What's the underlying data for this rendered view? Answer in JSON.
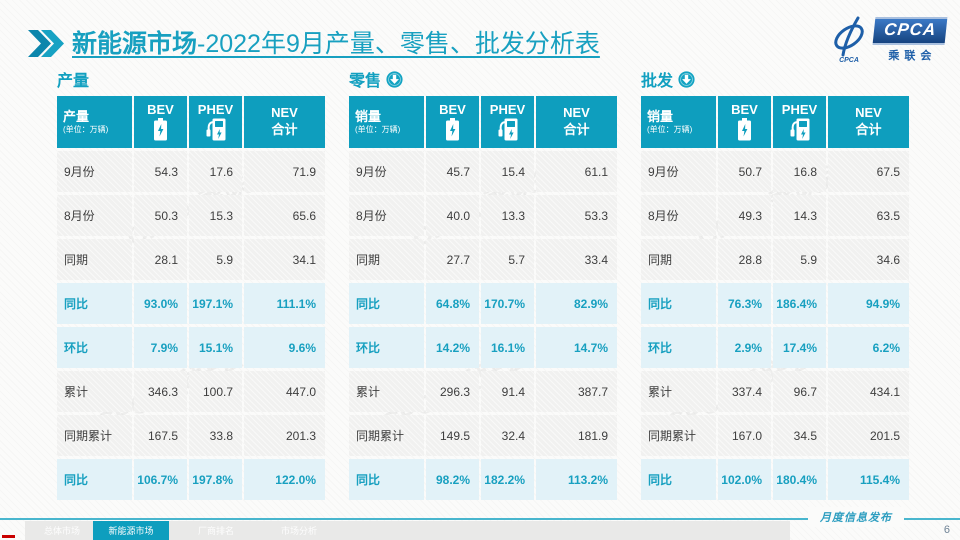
{
  "page": {
    "title_bold": "新能源市场",
    "title_rest": "-2022年9月产量、零售、批发分析表",
    "publication_label": "月度信息发布",
    "page_number": "6",
    "watermark": "CPCA 乘联会"
  },
  "logo": {
    "acronym": "CPCA",
    "name": "乘联会",
    "mark": "CPCA"
  },
  "icons": {
    "title": "double-chevron-icon",
    "bev": "battery-icon",
    "phev": "charging-pump-icon",
    "section_arrow": "down-arrow-circle-icon"
  },
  "colors": {
    "accent_teal": "#0E9EBE",
    "title_teal": "#18A0C0",
    "highlight_row_bg": "#E2F2F8",
    "normal_row_bg": "#F1F1F0",
    "logo_blue": "#1E5FA8",
    "footer_line_teal": "#49B6CE",
    "highlight_text": "#18A0C0"
  },
  "tables": [
    {
      "section": "产量",
      "has_arrow": false,
      "header": {
        "label": "产量",
        "unit": "(单位：万辆)",
        "col_bev": "BEV",
        "col_phev": "PHEV",
        "col_nev_line1": "NEV",
        "col_nev_line2": "合计"
      },
      "rows": [
        {
          "label": "9月份",
          "values": [
            "54.3",
            "17.6",
            "71.9"
          ],
          "highlight": false
        },
        {
          "label": "8月份",
          "values": [
            "50.3",
            "15.3",
            "65.6"
          ],
          "highlight": false
        },
        {
          "label": "同期",
          "values": [
            "28.1",
            "5.9",
            "34.1"
          ],
          "highlight": false
        },
        {
          "label": "同比",
          "values": [
            "93.0%",
            "197.1%",
            "111.1%"
          ],
          "highlight": true
        },
        {
          "label": "环比",
          "values": [
            "7.9%",
            "15.1%",
            "9.6%"
          ],
          "highlight": true
        },
        {
          "label": "累计",
          "values": [
            "346.3",
            "100.7",
            "447.0"
          ],
          "highlight": false
        },
        {
          "label": "同期累计",
          "values": [
            "167.5",
            "33.8",
            "201.3"
          ],
          "highlight": false
        },
        {
          "label": "同比",
          "values": [
            "106.7%",
            "197.8%",
            "122.0%"
          ],
          "highlight": true
        }
      ]
    },
    {
      "section": "零售",
      "has_arrow": true,
      "header": {
        "label": "销量",
        "unit": "(单位：万辆)",
        "col_bev": "BEV",
        "col_phev": "PHEV",
        "col_nev_line1": "NEV",
        "col_nev_line2": "合计"
      },
      "rows": [
        {
          "label": "9月份",
          "values": [
            "45.7",
            "15.4",
            "61.1"
          ],
          "highlight": false
        },
        {
          "label": "8月份",
          "values": [
            "40.0",
            "13.3",
            "53.3"
          ],
          "highlight": false
        },
        {
          "label": "同期",
          "values": [
            "27.7",
            "5.7",
            "33.4"
          ],
          "highlight": false
        },
        {
          "label": "同比",
          "values": [
            "64.8%",
            "170.7%",
            "82.9%"
          ],
          "highlight": true
        },
        {
          "label": "环比",
          "values": [
            "14.2%",
            "16.1%",
            "14.7%"
          ],
          "highlight": true
        },
        {
          "label": "累计",
          "values": [
            "296.3",
            "91.4",
            "387.7"
          ],
          "highlight": false
        },
        {
          "label": "同期累计",
          "values": [
            "149.5",
            "32.4",
            "181.9"
          ],
          "highlight": false
        },
        {
          "label": "同比",
          "values": [
            "98.2%",
            "182.2%",
            "113.2%"
          ],
          "highlight": true
        }
      ]
    },
    {
      "section": "批发",
      "has_arrow": true,
      "header": {
        "label": "销量",
        "unit": "(单位：万辆)",
        "col_bev": "BEV",
        "col_phev": "PHEV",
        "col_nev_line1": "NEV",
        "col_nev_line2": "合计"
      },
      "rows": [
        {
          "label": "9月份",
          "values": [
            "50.7",
            "16.8",
            "67.5"
          ],
          "highlight": false
        },
        {
          "label": "8月份",
          "values": [
            "49.3",
            "14.3",
            "63.5"
          ],
          "highlight": false
        },
        {
          "label": "同期",
          "values": [
            "28.8",
            "5.9",
            "34.6"
          ],
          "highlight": false
        },
        {
          "label": "同比",
          "values": [
            "76.3%",
            "186.4%",
            "94.9%"
          ],
          "highlight": true
        },
        {
          "label": "环比",
          "values": [
            "2.9%",
            "17.4%",
            "6.2%"
          ],
          "highlight": true
        },
        {
          "label": "累计",
          "values": [
            "337.4",
            "96.7",
            "434.1"
          ],
          "highlight": false
        },
        {
          "label": "同期累计",
          "values": [
            "167.0",
            "34.5",
            "201.5"
          ],
          "highlight": false
        },
        {
          "label": "同比",
          "values": [
            "102.0%",
            "180.4%",
            "115.4%"
          ],
          "highlight": true
        }
      ]
    }
  ],
  "footer": {
    "tabs": [
      {
        "label": "总体市场",
        "active": false
      },
      {
        "label": "新能源市场",
        "active": true
      },
      {
        "label": "厂商排名",
        "active": false
      },
      {
        "label": "市场分析",
        "active": false
      }
    ]
  }
}
